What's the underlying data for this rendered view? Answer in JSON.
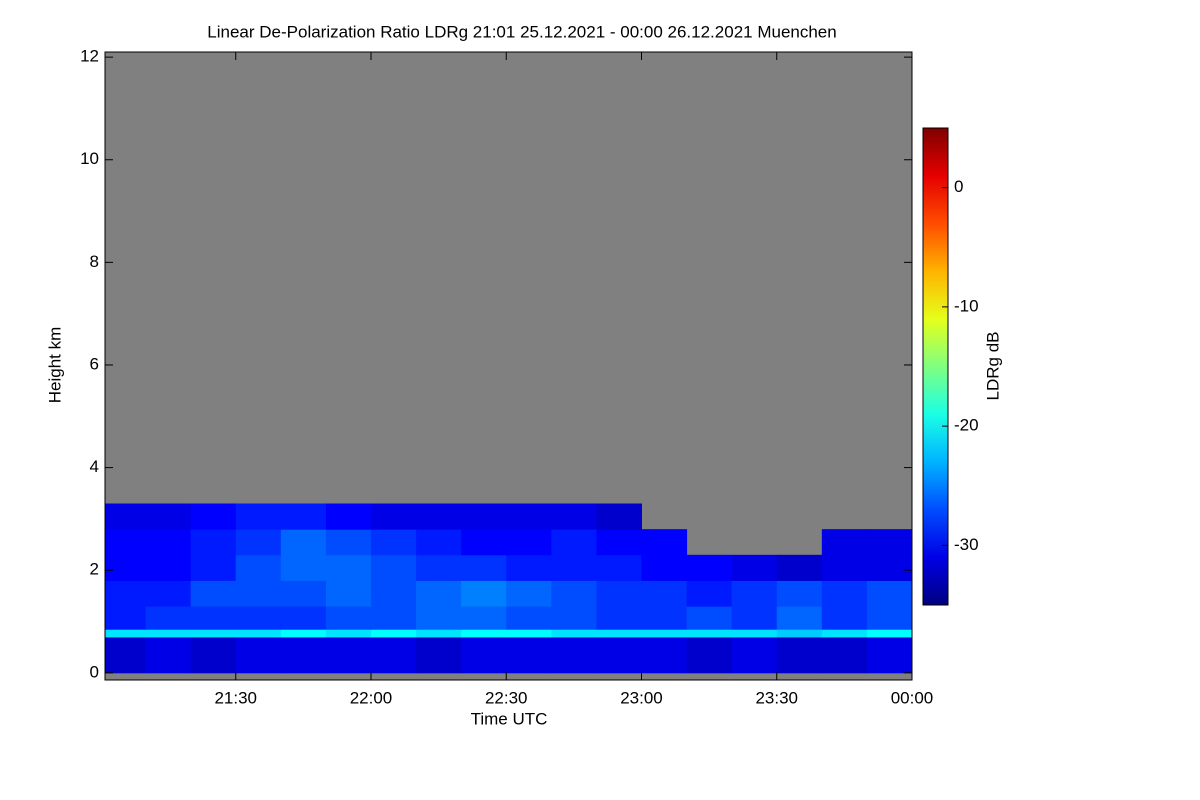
{
  "chart_data": {
    "type": "heatmap",
    "title": "Linear De-Polarization Ratio LDRg   21:01 25.12.2021 - 00:00 26.12.2021 Muenchen",
    "x_label": "Time UTC",
    "y_label": "Height km",
    "colorbar_label": "LDRg dB",
    "xlim": [
      21.0167,
      24
    ],
    "ylim": [
      -0.14,
      12.1
    ],
    "clim": [
      -35,
      5
    ],
    "xticks": [
      {
        "value": 21.5,
        "label": "21:30"
      },
      {
        "value": 22,
        "label": "22:00"
      },
      {
        "value": 22.5,
        "label": "22:30"
      },
      {
        "value": 23,
        "label": "23:00"
      },
      {
        "value": 23.5,
        "label": "23:30"
      },
      {
        "value": 24,
        "label": "00:00"
      }
    ],
    "yticks": [
      0,
      2,
      4,
      6,
      8,
      10,
      12
    ],
    "cticks": [
      0,
      -10,
      -20,
      -30
    ],
    "colormap": "jet",
    "background": "#808080",
    "xbins": [
      21.0167,
      21.1667,
      21.3333,
      21.5,
      21.6667,
      21.8333,
      22,
      22.1667,
      22.3333,
      22.5,
      22.6667,
      22.8333,
      23,
      23.1667,
      23.3333,
      23.5,
      23.6667,
      23.8333,
      24
    ],
    "ybins": [
      0,
      0.7,
      0.85,
      1.3,
      1.8,
      2.3,
      2.8,
      3.3
    ],
    "z": [
      [
        -32,
        -31,
        -32,
        -31,
        -31,
        -31,
        -31,
        -32,
        -31,
        -31,
        -31,
        -31,
        -31,
        -32,
        -31,
        -32,
        -32,
        -31
      ],
      [
        -21,
        -21,
        -21,
        -21,
        -20,
        -21,
        -20,
        -21,
        -20,
        -20,
        -21,
        -21,
        -21,
        -21,
        -21,
        -22,
        -21,
        -20
      ],
      [
        -29,
        -28,
        -28,
        -28,
        -28,
        -27,
        -27,
        -26,
        -26,
        -27,
        -27,
        -28,
        -28,
        -27,
        -28,
        -26,
        -28,
        -27
      ],
      [
        -29,
        -29,
        -27,
        -27,
        -27,
        -26,
        -27,
        -26,
        -25,
        -26,
        -27,
        -28,
        -28,
        -29,
        -28,
        -27,
        -28,
        -27
      ],
      [
        -30,
        -30,
        -29,
        -27,
        -26,
        -26,
        -27,
        -28,
        -28,
        -29,
        -29,
        -29,
        -30,
        -30,
        -31,
        -32,
        -31,
        -31
      ],
      [
        -30,
        -30,
        -29,
        -28,
        -26,
        -27,
        -28,
        -29,
        -30,
        -30,
        -29,
        -30,
        -30,
        null,
        null,
        null,
        -31,
        -31
      ],
      [
        -31,
        -31,
        -30,
        -29,
        -29,
        -30,
        -31,
        -31,
        -31,
        -31,
        -31,
        -32,
        null,
        null,
        null,
        null,
        null,
        null
      ]
    ]
  }
}
